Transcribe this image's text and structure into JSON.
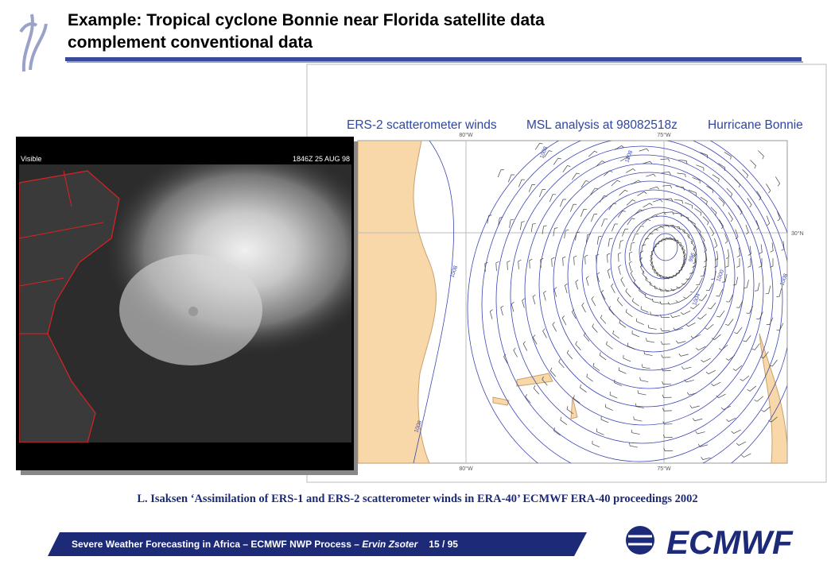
{
  "header": {
    "title_line1": "Example: Tropical cyclone Bonnie near Florida satellite data",
    "title_line2": "complement conventional data"
  },
  "satellite": {
    "label_left": "Visible",
    "label_right": "1846Z 25 AUG 98"
  },
  "map": {
    "heading_1": "ERS-2 scatterometer winds",
    "heading_2": "MSL analysis at 98082518z",
    "heading_3": "Hurricane Bonnie",
    "lon_top_1": "80°W",
    "lon_top_2": "75°W",
    "lon_bottom_1": "80°W",
    "lon_bottom_2": "75°W",
    "lat_right": "30°N",
    "isobars": [
      "1008",
      "1008",
      "1004",
      "1000",
      "996",
      "1008",
      "1008",
      "1008"
    ]
  },
  "citation": "L. Isaksen ‘Assimilation of ERS-1 and ERS-2 scatterometer winds in ERA-40’ ECMWF ERA-40 proceedings 2002",
  "footer": {
    "text": "Severe Weather Forecasting in Africa – ECMWF NWP Process – ",
    "author": "Ervin Zsoter",
    "page": "15 / 95"
  },
  "logo": "ECMWF"
}
